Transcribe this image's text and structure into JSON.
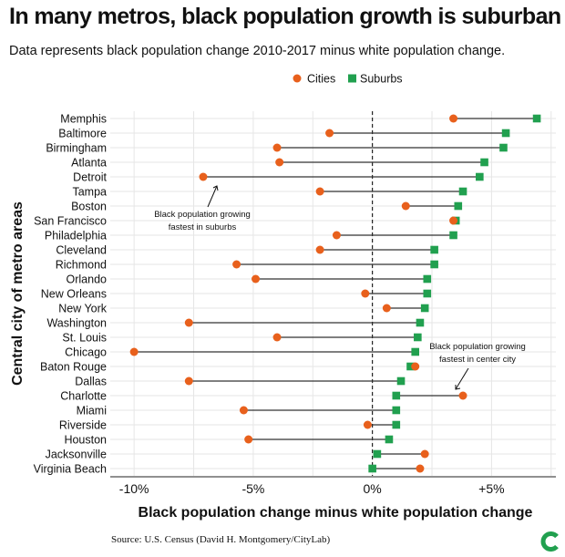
{
  "title": "In many metros, black population growth is suburban",
  "subtitle": "Data represents black population change 2010-2017 minus white population change.",
  "source": "Source: U.S. Census (David H. Montgomery/CityLab)",
  "colors": {
    "cities": "#E8601C",
    "suburbs": "#21A04F",
    "connector": "#333333",
    "grid": "#e6e6e6",
    "logo": "#21A04F"
  },
  "logo_icon": "citylab-c-logo-icon",
  "chart_data": {
    "type": "dumbbell",
    "title": "In many metros, black population growth is suburban",
    "xlabel": "Black population change minus white population change",
    "ylabel": "Central city of metro areas",
    "xlim": [
      -11,
      7.7
    ],
    "x_ticks": [
      -10,
      -5,
      0,
      5
    ],
    "x_tick_labels": [
      "-10%",
      "-5%",
      "0%",
      "+5%"
    ],
    "reference_line": 0,
    "legend": {
      "position": "top",
      "entries": [
        "Cities",
        "Suburbs"
      ]
    },
    "categories": [
      "Memphis",
      "Baltimore",
      "Birmingham",
      "Atlanta",
      "Detroit",
      "Tampa",
      "Boston",
      "San Francisco",
      "Philadelphia",
      "Cleveland",
      "Richmond",
      "Orlando",
      "New Orleans",
      "New York",
      "Washington",
      "St. Louis",
      "Chicago",
      "Baton Rouge",
      "Dallas",
      "Charlotte",
      "Miami",
      "Riverside",
      "Houston",
      "Jacksonville",
      "Virginia Beach"
    ],
    "series": [
      {
        "name": "Cities",
        "values": [
          3.4,
          -1.8,
          -4.0,
          -3.9,
          -7.1,
          -2.2,
          1.4,
          3.4,
          -1.5,
          -2.2,
          -5.7,
          -4.9,
          -0.3,
          0.6,
          -7.7,
          -4.0,
          -10.0,
          1.8,
          -7.7,
          3.8,
          -5.4,
          -0.2,
          -5.2,
          2.2,
          2.0
        ]
      },
      {
        "name": "Suburbs",
        "values": [
          6.9,
          5.6,
          5.5,
          4.7,
          4.5,
          3.8,
          3.6,
          3.5,
          3.4,
          2.6,
          2.6,
          2.3,
          2.3,
          2.2,
          2.0,
          1.9,
          1.8,
          1.6,
          1.2,
          1.0,
          1.0,
          1.0,
          0.7,
          0.2,
          0.0
        ]
      }
    ],
    "annotations": [
      {
        "lines": [
          "Black population growing",
          "fastest in suburbs"
        ],
        "points_to": "Detroit"
      },
      {
        "lines": [
          "Black population growing",
          "fastest in center city"
        ],
        "points_to": "Charlotte"
      }
    ]
  }
}
